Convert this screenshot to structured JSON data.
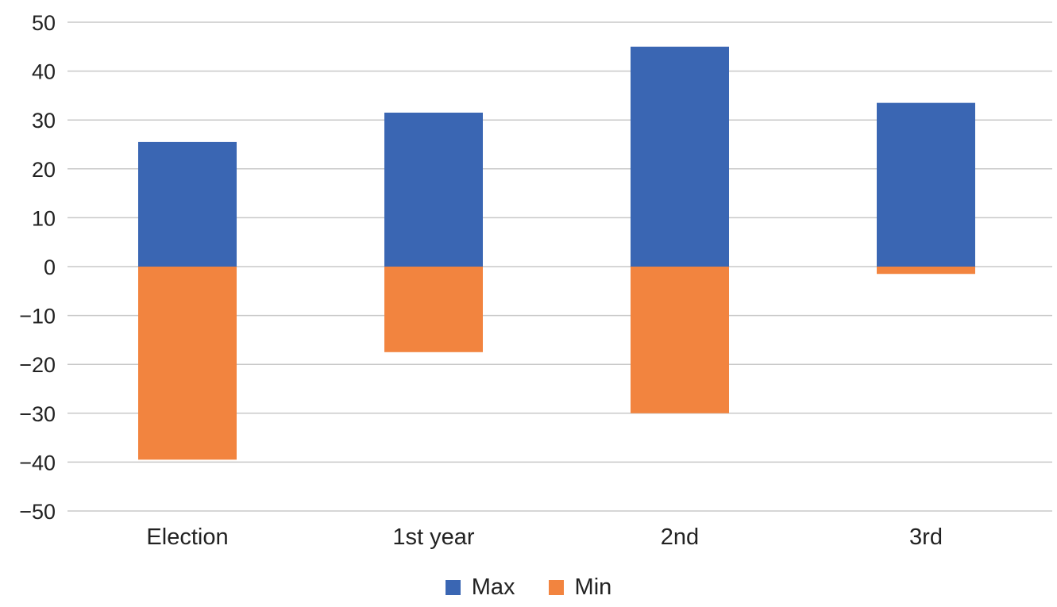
{
  "chart_data": {
    "type": "bar",
    "stacked": true,
    "categories": [
      "Election",
      "1st year",
      "2nd",
      "3rd"
    ],
    "series": [
      {
        "name": "Max",
        "color": "#3a66b3",
        "values": [
          25.5,
          31.5,
          45,
          33.5
        ]
      },
      {
        "name": "Min",
        "color": "#f2843f",
        "values": [
          -39.5,
          -17.5,
          -30,
          -1.5
        ]
      }
    ],
    "title": "",
    "xlabel": "",
    "ylabel": "",
    "ylim": [
      -50,
      50
    ],
    "yticks": [
      50,
      40,
      30,
      20,
      10,
      0,
      -10,
      -20,
      -30,
      -40,
      -50
    ],
    "ytick_labels": [
      "50",
      "40",
      "30",
      "20",
      "10",
      "0",
      "−10",
      "−20",
      "−30",
      "−40",
      "−50"
    ],
    "grid": true,
    "legend": "bottom"
  }
}
